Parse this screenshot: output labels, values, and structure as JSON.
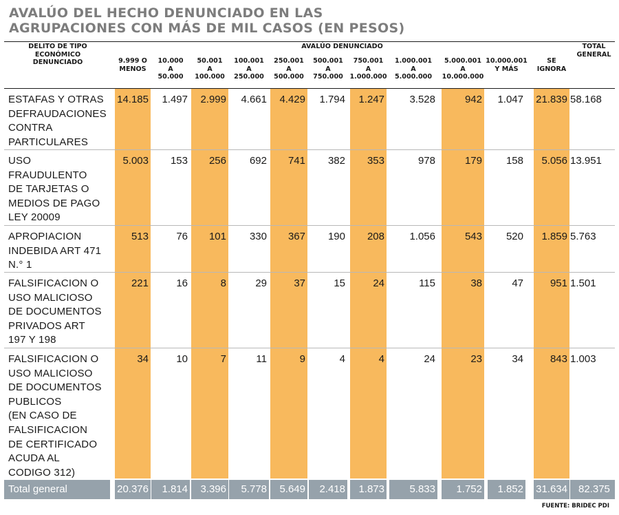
{
  "title_lines": [
    "AVALÚO DEL HECHO DENUNCIADO EN LAS",
    "AGRUPACIONES CON MÁS DE MIL CASOS (EN PESOS)"
  ],
  "row_header": [
    "DELITO DE TIPO",
    "ECONÓMICO",
    "DENUNCIADO"
  ],
  "group_header": "AVALÚO DENUNCIADO",
  "total_header": [
    "TOTAL",
    "GENERAL"
  ],
  "source": "FUENTE: BRIDEC PDI",
  "colors": {
    "highlight": "#f8b95d",
    "footer": "#96a2ab",
    "title": "#7d7d7d"
  },
  "chart_data": {
    "type": "table",
    "columns": [
      [
        "9.999 O",
        "MENOS"
      ],
      [
        "10.000",
        "A",
        "50.000"
      ],
      [
        "50.001",
        "A",
        "100.000"
      ],
      [
        "100.001",
        "A",
        "250.000"
      ],
      [
        "250.001",
        "A",
        "500.000"
      ],
      [
        "500.001",
        "A",
        "750.000"
      ],
      [
        "750.001",
        "A",
        "1.000.000"
      ],
      [
        "1.000.001",
        "A",
        "5.000.000"
      ],
      [
        "5.000.001",
        "A",
        "10.000.000"
      ],
      [
        "10.000.001",
        "Y MÁS"
      ],
      [
        "SE",
        "IGNORA"
      ]
    ],
    "highlighted_columns": [
      0,
      2,
      4,
      6,
      8,
      10
    ],
    "rows": [
      {
        "label": [
          "ESTAFAS Y OTRAS",
          "DEFRAUDACIONES",
          "CONTRA",
          "PARTICULARES"
        ],
        "values": [
          "14.185",
          "1.497",
          "2.999",
          "4.661",
          "4.429",
          "1.794",
          "1.247",
          "3.528",
          "942",
          "1.047",
          "21.839"
        ],
        "total": "58.168"
      },
      {
        "label": [
          "USO",
          "FRAUDULENTO",
          "DE TARJETAS O",
          "MEDIOS DE PAGO",
          "LEY 20009"
        ],
        "values": [
          "5.003",
          "153",
          "256",
          "692",
          "741",
          "382",
          "353",
          "978",
          "179",
          "158",
          "5.056"
        ],
        "total": "13.951"
      },
      {
        "label": [
          "APROPIACION",
          "INDEBIDA ART 471",
          "N.° 1"
        ],
        "values": [
          "513",
          "76",
          "101",
          "330",
          "367",
          "190",
          "208",
          "1.056",
          "543",
          "520",
          "1.859"
        ],
        "total": "5.763"
      },
      {
        "label": [
          "FALSIFICACION O",
          "USO MALICIOSO",
          "DE DOCUMENTOS",
          "PRIVADOS ART",
          "197 Y 198"
        ],
        "values": [
          "221",
          "16",
          "8",
          "29",
          "37",
          "15",
          "24",
          "115",
          "38",
          "47",
          "951"
        ],
        "total": "1.501"
      },
      {
        "label": [
          "FALSIFICACION O",
          "USO MALICIOSO",
          "DE DOCUMENTOS",
          "PUBLICOS",
          "(EN CASO DE",
          "FALSIFICACION",
          "DE CERTIFICADO",
          "ACUDA AL",
          "CODIGO 312)"
        ],
        "values": [
          "34",
          "10",
          "7",
          "11",
          "9",
          "4",
          "4",
          "24",
          "23",
          "34",
          "843"
        ],
        "total": "1.003"
      }
    ],
    "footer": {
      "label": "Total general",
      "values": [
        "20.376",
        "1.814",
        "3.396",
        "5.778",
        "5.649",
        "2.418",
        "1.873",
        "5.833",
        "1.752",
        "1.852",
        "31.634"
      ],
      "total": "82.375"
    }
  }
}
